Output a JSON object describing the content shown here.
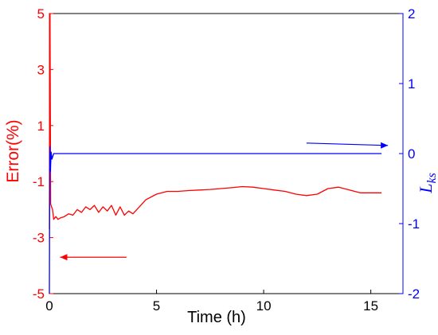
{
  "chart_data": {
    "type": "line",
    "xlabel": "Time (h)",
    "ylabel_left": "Error(%)",
    "ylabel_right_main": "L",
    "ylabel_right_sub": "ks",
    "xlim": [
      0,
      16.5
    ],
    "ylim_left": [
      -5,
      5
    ],
    "ylim_right": [
      -2,
      2
    ],
    "x_ticks": [
      "0",
      "5",
      "10",
      "15"
    ],
    "y_left_ticks": [
      "-5",
      "-3",
      "-1",
      "1",
      "3",
      "5"
    ],
    "y_right_ticks": [
      "-2",
      "-1",
      "0",
      "1",
      "2"
    ],
    "grid": false,
    "colors": {
      "error": "#ff0000",
      "lks": "#0000ff",
      "axis_left": "#ff0000",
      "axis_right": "#0000ff",
      "frame": "#000000"
    },
    "series": [
      {
        "axis": "left",
        "color": "#ff0000",
        "x": [
          0,
          0.03,
          0.06,
          0.1,
          0.15,
          0.2,
          0.3,
          0.4,
          0.5,
          0.7,
          0.9,
          1.1,
          1.3,
          1.5,
          1.7,
          1.9,
          2.1,
          2.3,
          2.5,
          2.7,
          2.9,
          3.1,
          3.3,
          3.5,
          3.7,
          3.9,
          4.2,
          4.5,
          5.0,
          5.5,
          6.0,
          6.5,
          7.0,
          7.5,
          8.0,
          8.5,
          9.0,
          9.5,
          10.0,
          10.5,
          11.0,
          11.5,
          12.0,
          12.5,
          13.0,
          13.5,
          14.0,
          14.5,
          15.0,
          15.5
        ],
        "values": [
          -2.7,
          5.0,
          -1.8,
          -1.9,
          -2.0,
          -2.35,
          -2.25,
          -2.35,
          -2.3,
          -2.25,
          -2.15,
          -2.2,
          -2.0,
          -2.1,
          -1.9,
          -2.0,
          -1.85,
          -2.1,
          -1.9,
          -2.05,
          -1.85,
          -2.2,
          -1.9,
          -2.2,
          -2.05,
          -2.15,
          -1.9,
          -1.65,
          -1.45,
          -1.35,
          -1.35,
          -1.32,
          -1.3,
          -1.28,
          -1.25,
          -1.22,
          -1.18,
          -1.2,
          -1.25,
          -1.3,
          -1.35,
          -1.45,
          -1.5,
          -1.45,
          -1.25,
          -1.2,
          -1.3,
          -1.4,
          -1.4,
          -1.4
        ]
      },
      {
        "axis": "right",
        "color": "#0000ff",
        "x": [
          0,
          0.02,
          0.05,
          0.08,
          0.12,
          0.2,
          0.4,
          1,
          5,
          10,
          15.5
        ],
        "values": [
          -2.0,
          0.1,
          -0.25,
          0.02,
          -0.08,
          0.0,
          0.0,
          0.0,
          0.0,
          0.0,
          0.0
        ]
      }
    ],
    "annotations": [
      {
        "type": "arrow",
        "direction": "left",
        "color": "#ff0000",
        "x_from": 3.6,
        "x_to": 0.5,
        "y": -3.7,
        "axis": "left"
      },
      {
        "type": "arrow",
        "direction": "right",
        "color": "#0000ff",
        "x_from": 12.0,
        "x_to": 15.8,
        "y": 0.15,
        "axis": "right"
      }
    ]
  }
}
